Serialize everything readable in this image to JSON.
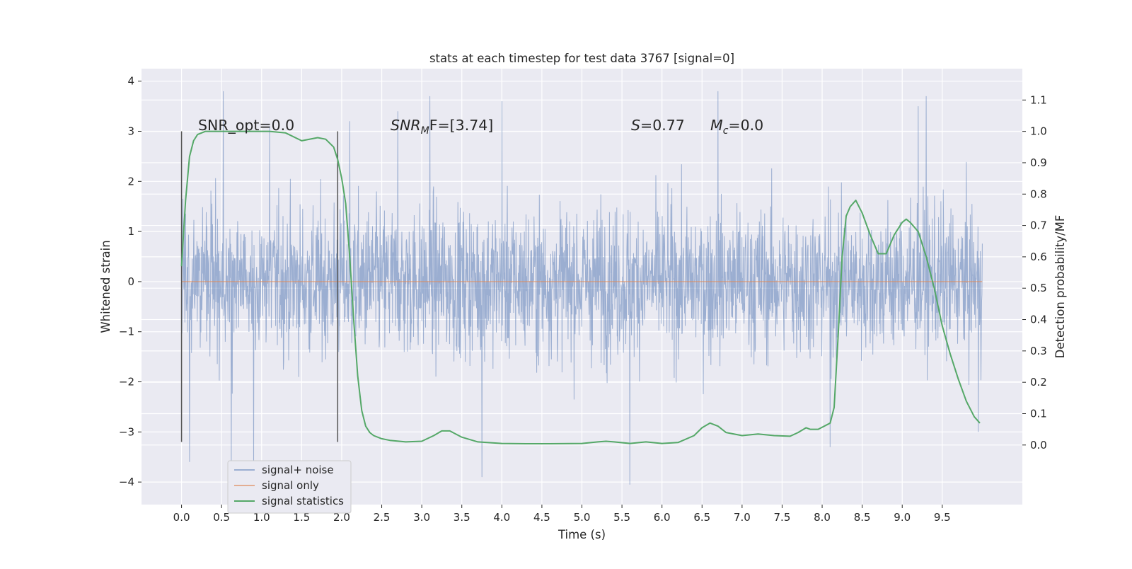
{
  "chart_data": {
    "type": "line",
    "title": "stats at each timestep for test data 3767 [signal=0]",
    "xlabel": "Time (s)",
    "ylabel": "Whitened strain",
    "y2label": "Detection probability/MF",
    "xlim": [
      -0.5,
      10.5
    ],
    "ylim": [
      -4.45,
      4.25
    ],
    "y2lim": [
      -0.19,
      1.2
    ],
    "xticks": [
      0.0,
      0.5,
      1.0,
      1.5,
      2.0,
      2.5,
      3.0,
      3.5,
      4.0,
      4.5,
      5.0,
      5.5,
      6.0,
      6.5,
      7.0,
      7.5,
      8.0,
      8.5,
      9.0,
      9.5
    ],
    "xtick_labels": [
      "0.0",
      "0.5",
      "1.0",
      "1.5",
      "2.0",
      "2.5",
      "3.0",
      "3.5",
      "4.0",
      "4.5",
      "5.0",
      "5.5",
      "6.0",
      "6.5",
      "7.0",
      "7.5",
      "8.0",
      "8.5",
      "9.0",
      "9.5"
    ],
    "yticks": [
      -4,
      -3,
      -2,
      -1,
      0,
      1,
      2,
      3,
      4
    ],
    "ytick_labels": [
      "−4",
      "−3",
      "−2",
      "−1",
      "0",
      "1",
      "2",
      "3",
      "4"
    ],
    "y2ticks": [
      0.0,
      0.1,
      0.2,
      0.3,
      0.4,
      0.5,
      0.6,
      0.7,
      0.8,
      0.9,
      1.0,
      1.1
    ],
    "y2tick_labels": [
      "0.0",
      "0.1",
      "0.2",
      "0.3",
      "0.4",
      "0.5",
      "0.6",
      "0.7",
      "0.8",
      "0.9",
      "1.0",
      "1.1"
    ],
    "grid": true,
    "legend_position": "lower-left",
    "annotations": {
      "snr_opt": "SNR_opt=0.0",
      "snr_mf_main": "SNR",
      "snr_mf_sub": "M",
      "snr_mf_rest": "F=[3.74]",
      "s_var": "S",
      "s_rest": "=0.77",
      "mc_var": "M",
      "mc_sub": "c",
      "mc_rest": "=0.0"
    },
    "vlines": [
      0.0,
      1.95
    ],
    "vline_range": [
      -3.2,
      3.0
    ],
    "series": [
      {
        "name": "signal+ noise",
        "color": "#4c72b0",
        "x_range": [
          0.0,
          10.0
        ],
        "approx_range": [
          -4.05,
          3.8
        ],
        "spikes": [
          [
            0.1,
            -3.6
          ],
          [
            0.52,
            3.8
          ],
          [
            0.62,
            -3.6
          ],
          [
            0.9,
            -3.8
          ],
          [
            1.1,
            3.1
          ],
          [
            2.1,
            3.2
          ],
          [
            2.7,
            3.4
          ],
          [
            3.1,
            3.7
          ],
          [
            3.75,
            -3.9
          ],
          [
            4.0,
            3.6
          ],
          [
            5.6,
            -4.05
          ],
          [
            6.7,
            3.8
          ],
          [
            8.1,
            -3.3
          ],
          [
            9.2,
            3.5
          ],
          [
            9.3,
            3.7
          ],
          [
            9.95,
            -3.0
          ]
        ]
      },
      {
        "name": "signal only",
        "color": "#dd8452",
        "x": [
          0.0,
          10.0
        ],
        "y": [
          0.0,
          0.0
        ]
      },
      {
        "name": "signal statistics",
        "color": "#55a868",
        "axis": "right",
        "x": [
          0.0,
          0.05,
          0.1,
          0.15,
          0.2,
          0.3,
          0.5,
          0.8,
          1.1,
          1.3,
          1.5,
          1.7,
          1.8,
          1.9,
          1.95,
          2.0,
          2.05,
          2.1,
          2.15,
          2.2,
          2.25,
          2.3,
          2.35,
          2.4,
          2.5,
          2.6,
          2.8,
          3.0,
          3.15,
          3.25,
          3.35,
          3.5,
          3.7,
          4.0,
          4.3,
          4.6,
          5.0,
          5.2,
          5.3,
          5.4,
          5.6,
          5.8,
          6.0,
          6.2,
          6.4,
          6.5,
          6.6,
          6.7,
          6.8,
          7.0,
          7.2,
          7.4,
          7.6,
          7.7,
          7.8,
          7.85,
          7.95,
          8.1,
          8.15,
          8.2,
          8.25,
          8.3,
          8.35,
          8.42,
          8.5,
          8.6,
          8.7,
          8.8,
          8.9,
          9.0,
          9.05,
          9.1,
          9.2,
          9.3,
          9.4,
          9.5,
          9.6,
          9.7,
          9.8,
          9.9,
          9.97
        ],
        "y": [
          0.57,
          0.78,
          0.92,
          0.97,
          0.99,
          1.0,
          1.0,
          1.0,
          1.0,
          0.995,
          0.97,
          0.98,
          0.975,
          0.95,
          0.91,
          0.85,
          0.77,
          0.6,
          0.4,
          0.22,
          0.11,
          0.06,
          0.04,
          0.03,
          0.02,
          0.015,
          0.01,
          0.012,
          0.03,
          0.045,
          0.045,
          0.025,
          0.01,
          0.005,
          0.004,
          0.004,
          0.005,
          0.01,
          0.012,
          0.01,
          0.005,
          0.01,
          0.005,
          0.008,
          0.03,
          0.055,
          0.07,
          0.06,
          0.04,
          0.03,
          0.035,
          0.03,
          0.028,
          0.04,
          0.055,
          0.05,
          0.05,
          0.07,
          0.12,
          0.35,
          0.6,
          0.73,
          0.76,
          0.78,
          0.74,
          0.67,
          0.61,
          0.61,
          0.67,
          0.71,
          0.72,
          0.71,
          0.68,
          0.6,
          0.5,
          0.38,
          0.29,
          0.21,
          0.14,
          0.09,
          0.07
        ]
      }
    ]
  }
}
